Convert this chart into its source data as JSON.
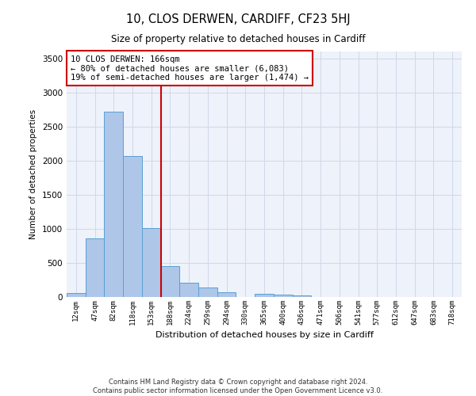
{
  "title1": "10, CLOS DERWEN, CARDIFF, CF23 5HJ",
  "title2": "Size of property relative to detached houses in Cardiff",
  "xlabel": "Distribution of detached houses by size in Cardiff",
  "ylabel": "Number of detached properties",
  "bar_labels": [
    "12sqm",
    "47sqm",
    "82sqm",
    "118sqm",
    "153sqm",
    "188sqm",
    "224sqm",
    "259sqm",
    "294sqm",
    "330sqm",
    "365sqm",
    "400sqm",
    "436sqm",
    "471sqm",
    "506sqm",
    "541sqm",
    "577sqm",
    "612sqm",
    "647sqm",
    "683sqm",
    "718sqm"
  ],
  "bar_values": [
    60,
    860,
    2720,
    2065,
    1010,
    455,
    205,
    145,
    65,
    0,
    50,
    40,
    25,
    0,
    0,
    0,
    0,
    0,
    0,
    0,
    0
  ],
  "bar_color": "#aec6e8",
  "bar_edge_color": "#5a9fd4",
  "vline_color": "#cc0000",
  "annotation_text": "10 CLOS DERWEN: 166sqm\n← 80% of detached houses are smaller (6,083)\n19% of semi-detached houses are larger (1,474) →",
  "annotation_box_color": "#ffffff",
  "annotation_box_edge": "#cc0000",
  "grid_color": "#d0d8e8",
  "background_color": "#eef2fa",
  "ylim": [
    0,
    3600
  ],
  "yticks": [
    0,
    500,
    1000,
    1500,
    2000,
    2500,
    3000,
    3500
  ],
  "footer": "Contains HM Land Registry data © Crown copyright and database right 2024.\nContains public sector information licensed under the Open Government Licence v3.0."
}
